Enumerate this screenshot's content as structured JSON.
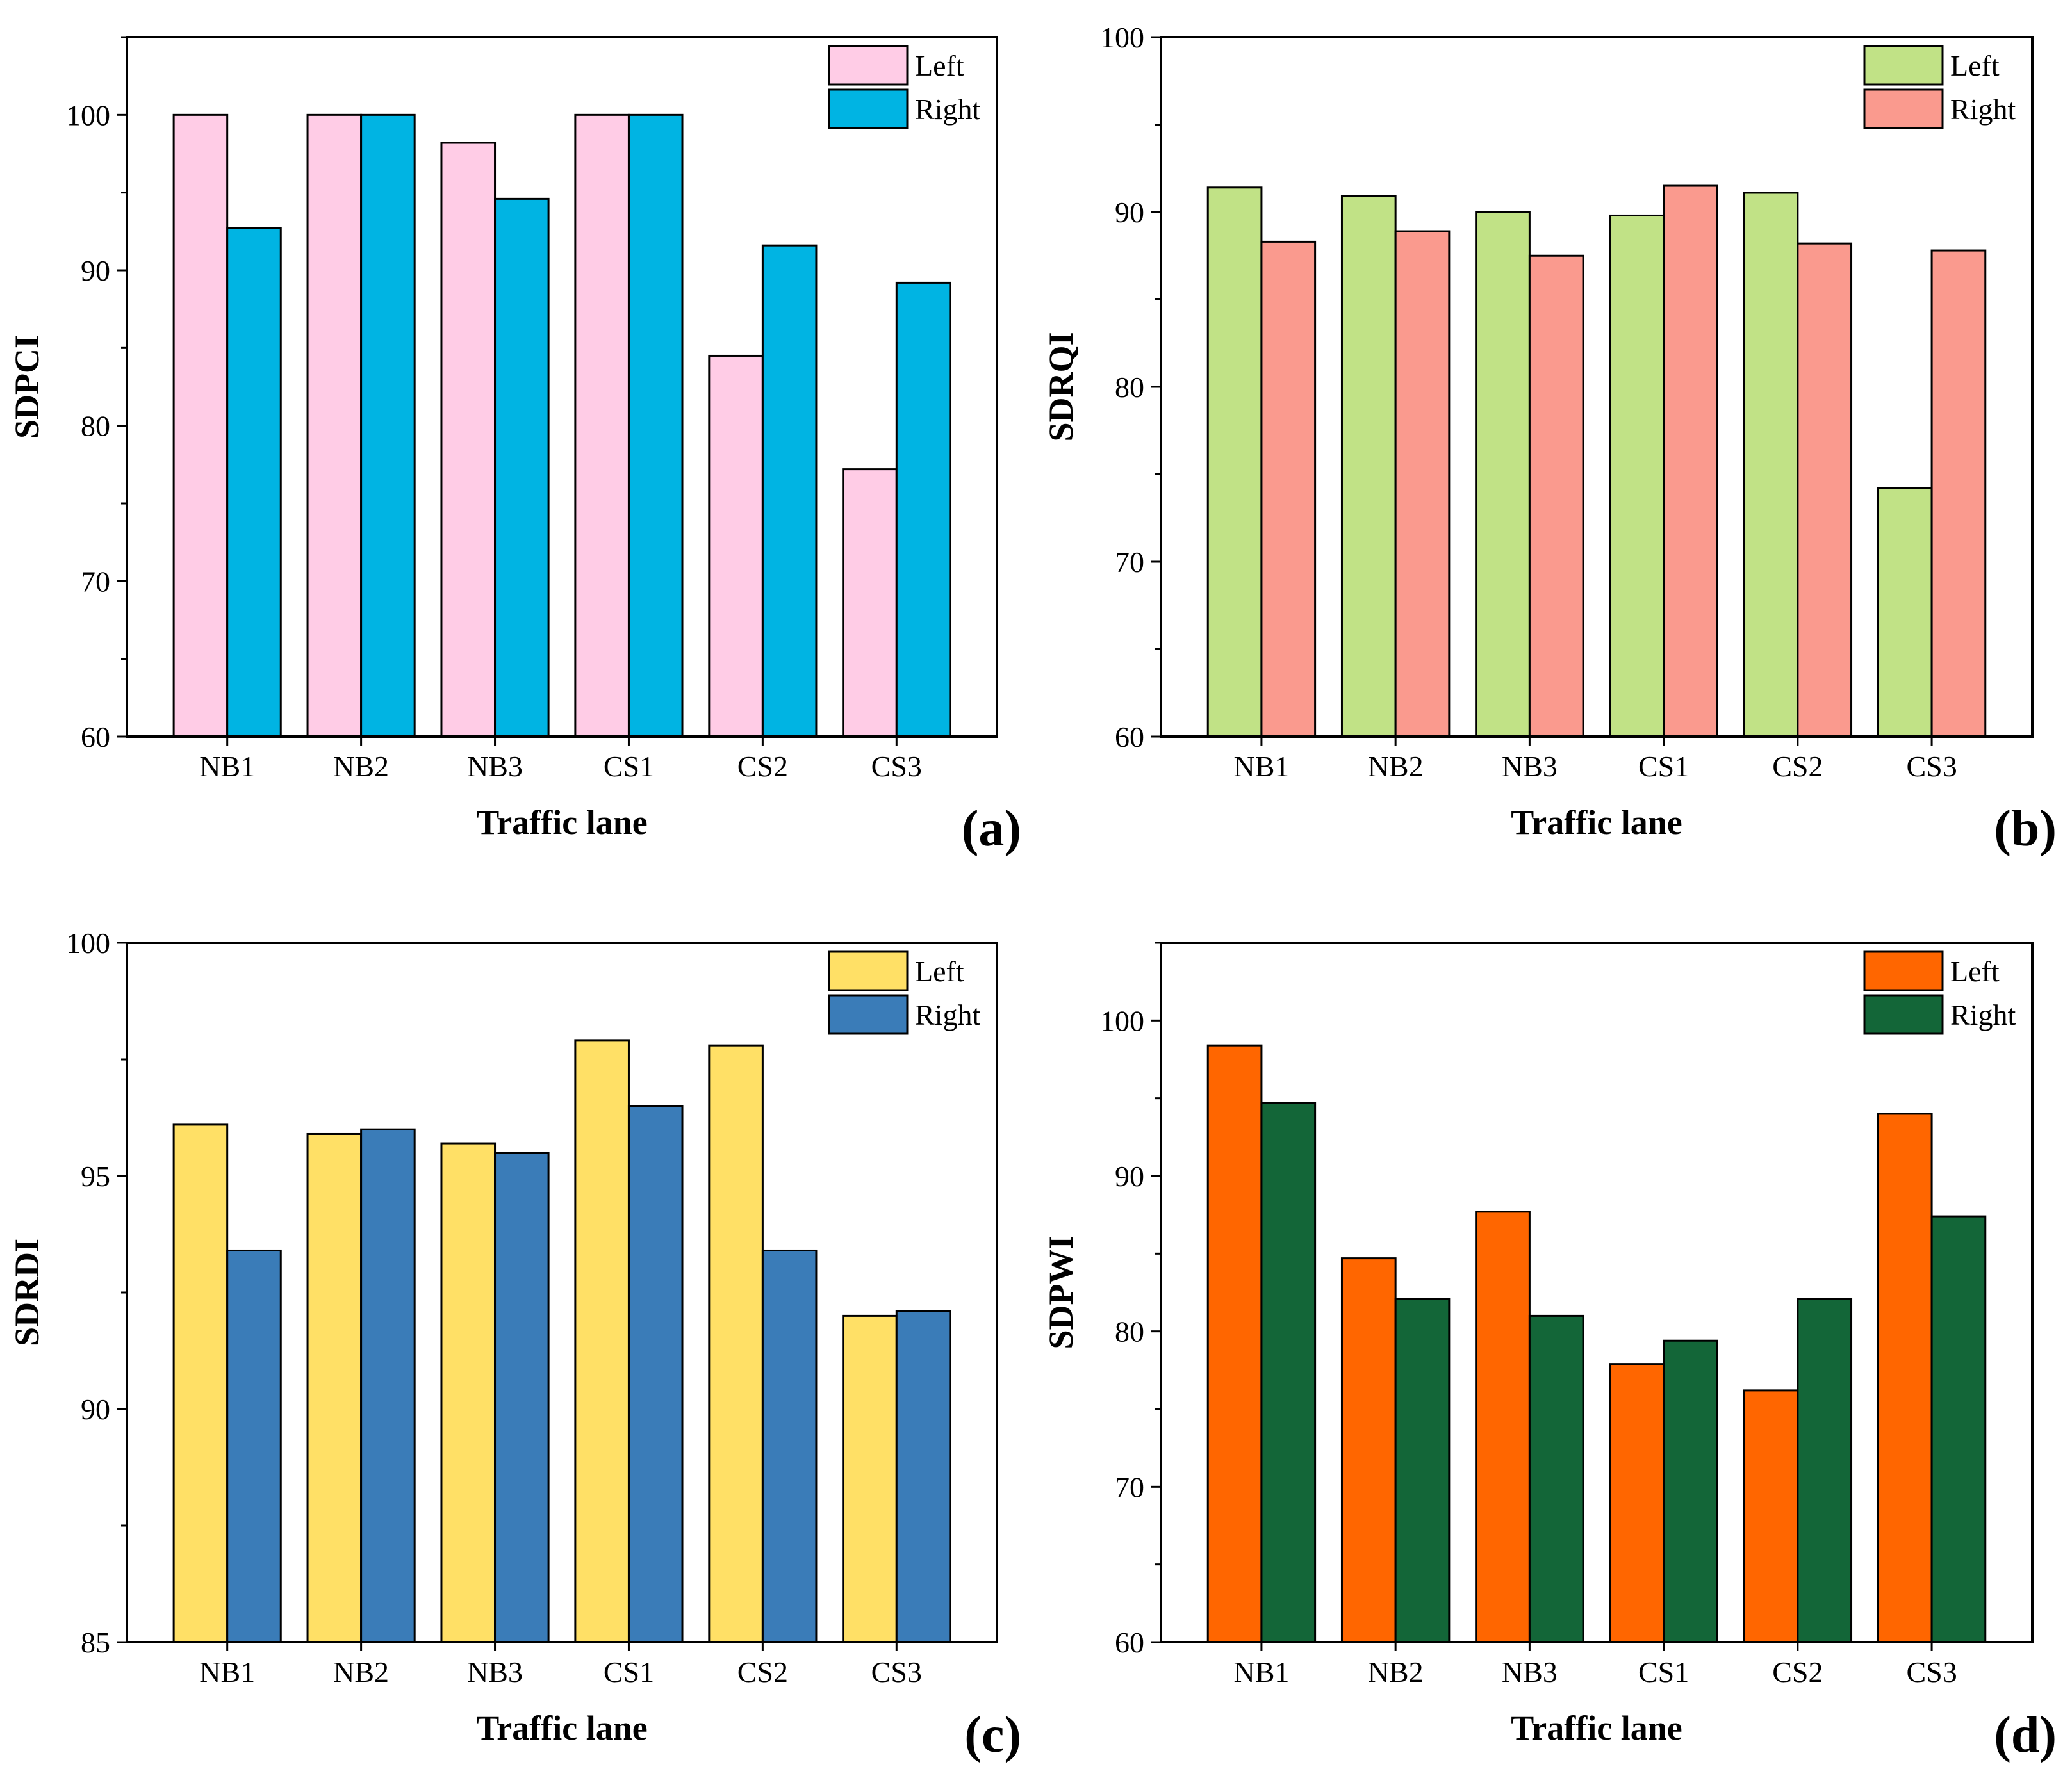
{
  "chart_data": [
    {
      "type": "bar",
      "panel_label": "(a)",
      "categories": [
        "NB1",
        "NB2",
        "NB3",
        "CS1",
        "CS2",
        "CS3"
      ],
      "series": [
        {
          "name": "Left",
          "color": "#FFCCE6",
          "values": [
            100,
            100,
            98.2,
            100,
            84.5,
            77.2
          ]
        },
        {
          "name": "Right",
          "color": "#00B4E3",
          "values": [
            92.7,
            100,
            94.6,
            100,
            91.6,
            89.2
          ]
        }
      ],
      "xlabel": "Traffic lane",
      "ylabel": "SDPCI",
      "ylim": [
        60,
        105
      ],
      "yticks": [
        60,
        70,
        80,
        90,
        100
      ],
      "grid": false,
      "legend_position": "top-right"
    },
    {
      "type": "bar",
      "panel_label": "(b)",
      "categories": [
        "NB1",
        "NB2",
        "NB3",
        "CS1",
        "CS2",
        "CS3"
      ],
      "series": [
        {
          "name": "Left",
          "color": "#C1E286",
          "values": [
            91.4,
            90.9,
            90.0,
            89.8,
            91.1,
            74.2
          ]
        },
        {
          "name": "Right",
          "color": "#FA9A8E",
          "values": [
            88.3,
            88.9,
            87.5,
            91.5,
            88.2,
            87.8
          ]
        }
      ],
      "xlabel": "Traffic lane",
      "ylabel": "SDRQI",
      "ylim": [
        60,
        100
      ],
      "yticks": [
        60,
        70,
        80,
        90,
        100
      ],
      "grid": false,
      "legend_position": "top-right"
    },
    {
      "type": "bar",
      "panel_label": "(c)",
      "categories": [
        "NB1",
        "NB2",
        "NB3",
        "CS1",
        "CS2",
        "CS3"
      ],
      "series": [
        {
          "name": "Left",
          "color": "#FFE066",
          "values": [
            96.1,
            95.9,
            95.7,
            97.9,
            97.8,
            92.0
          ]
        },
        {
          "name": "Right",
          "color": "#3A7CB8",
          "values": [
            93.4,
            96.0,
            95.5,
            96.5,
            93.4,
            92.1
          ]
        }
      ],
      "xlabel": "Traffic lane",
      "ylabel": "SDRDI",
      "ylim": [
        85,
        100
      ],
      "yticks": [
        85,
        90,
        95,
        100
      ],
      "grid": false,
      "legend_position": "top-right"
    },
    {
      "type": "bar",
      "panel_label": "(d)",
      "categories": [
        "NB1",
        "NB2",
        "NB3",
        "CS1",
        "CS2",
        "CS3"
      ],
      "series": [
        {
          "name": "Left",
          "color": "#FF6600",
          "values": [
            98.4,
            84.7,
            87.7,
            77.9,
            76.2,
            94.0
          ]
        },
        {
          "name": "Right",
          "color": "#136638",
          "values": [
            94.7,
            82.1,
            81.0,
            79.4,
            82.1,
            87.4
          ]
        }
      ],
      "xlabel": "Traffic lane",
      "ylabel": "SDPWI",
      "ylim": [
        60,
        105
      ],
      "yticks": [
        60,
        70,
        80,
        90,
        100
      ],
      "grid": false,
      "legend_position": "top-right"
    }
  ]
}
